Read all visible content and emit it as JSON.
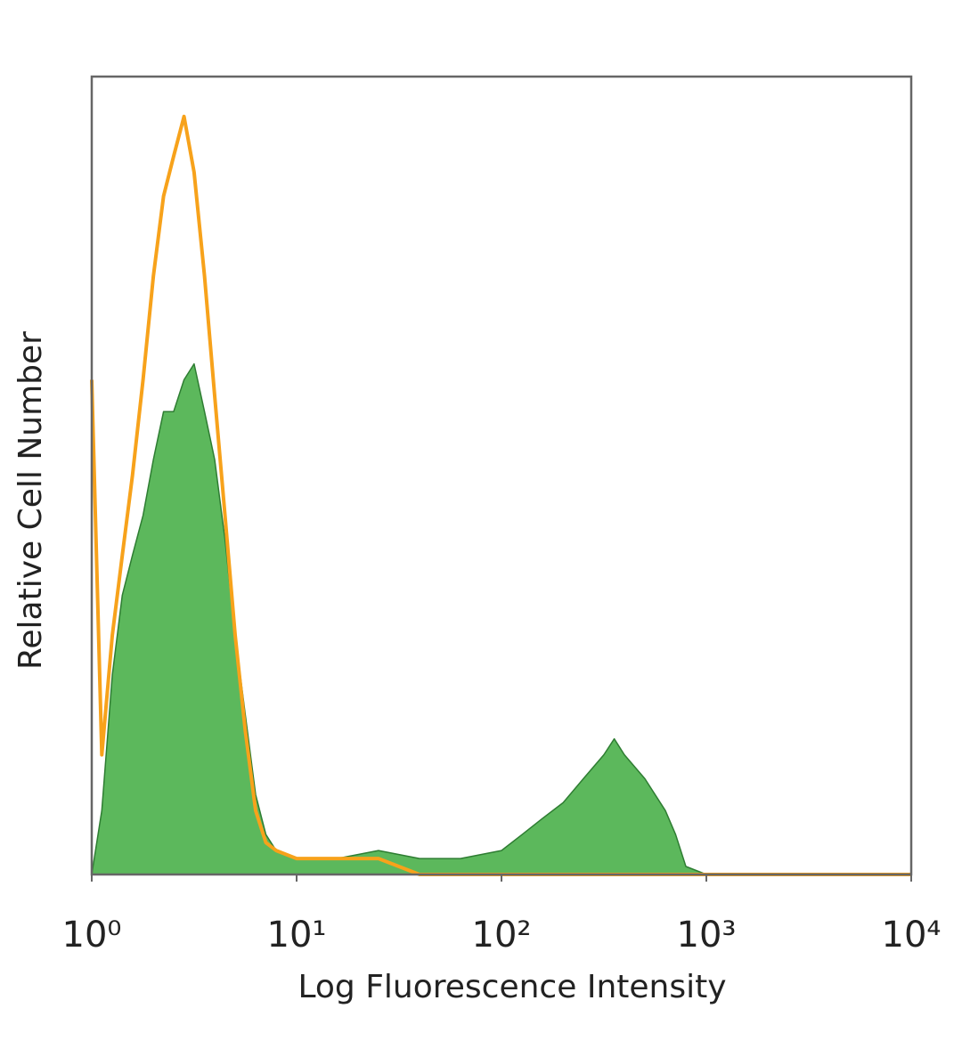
{
  "chart_data": {
    "type": "histogram-overlay",
    "xlabel": "Log Fluorescence Intensity",
    "ylabel": "Relative Cell Number",
    "xscale": "log",
    "xlim": [
      1,
      10000
    ],
    "ylim": [
      0,
      100
    ],
    "xticks": [
      {
        "value": 1,
        "label": "10⁰"
      },
      {
        "value": 10,
        "label": "10¹"
      },
      {
        "value": 100,
        "label": "10²"
      },
      {
        "value": 1000,
        "label": "10³"
      },
      {
        "value": 10000,
        "label": "10⁴"
      }
    ],
    "x": [
      1,
      1.12,
      1.26,
      1.41,
      1.58,
      1.78,
      2.0,
      2.24,
      2.51,
      2.82,
      3.16,
      3.55,
      3.98,
      4.47,
      5.01,
      5.62,
      6.31,
      7.08,
      7.94,
      10,
      15.8,
      25.1,
      39.8,
      63.1,
      100,
      126,
      158,
      200,
      251,
      316,
      355,
      398,
      501,
      631,
      708,
      794,
      1000,
      3162,
      10000
    ],
    "series": [
      {
        "color": "#5cb85c",
        "fill": true,
        "values": [
          0,
          8,
          25,
          35,
          40,
          45,
          52,
          58,
          58,
          62,
          64,
          58,
          52,
          42,
          30,
          20,
          10,
          5,
          3,
          2,
          2,
          3,
          2,
          2,
          3,
          5,
          7,
          9,
          12,
          15,
          17,
          15,
          12,
          8,
          5,
          1,
          0,
          0,
          0
        ]
      },
      {
        "color": "#f7a21b",
        "fill": false,
        "values": [
          62,
          15,
          30,
          40,
          50,
          62,
          75,
          85,
          90,
          95,
          88,
          75,
          60,
          45,
          30,
          18,
          8,
          4,
          3,
          2,
          2,
          2,
          0,
          0,
          0,
          0,
          0,
          0,
          0,
          0,
          0,
          0,
          0,
          0,
          0,
          0,
          0,
          0,
          0
        ]
      }
    ]
  }
}
